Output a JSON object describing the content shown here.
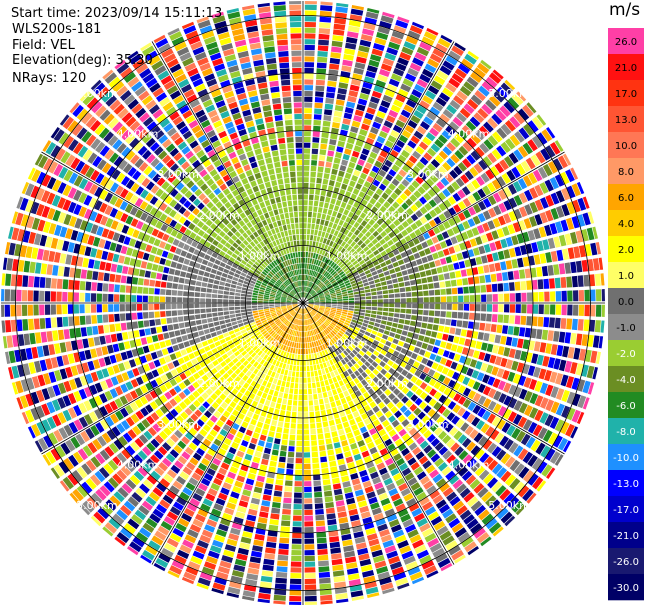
{
  "meta": {
    "start_time": "Start time: 2023/09/14 15:11:13",
    "instrument": "WLS200s-181",
    "field": "Field: VEL",
    "elevation": "Elevation(deg): 35.30",
    "nrays": "NRays: 120"
  },
  "chart_data": {
    "type": "heatmap",
    "projection": "polar-ppi",
    "field": "VEL",
    "unit": "m/s",
    "nrays": 120,
    "range_rings_km": [
      1.0,
      2.0,
      3.0,
      4.0,
      5.0
    ],
    "range_ring_labels": [
      "1.00km",
      "2.00km",
      "3.00km",
      "4.00km",
      "5.00km"
    ],
    "max_range_km": 5.3,
    "colorbar": {
      "labels": [
        "26.0",
        "21.0",
        "17.0",
        "13.0",
        "10.0",
        "8.0",
        "6.0",
        "4.0",
        "2.0",
        "1.0",
        "0.0",
        "-1.0",
        "-2.0",
        "-4.0",
        "-6.0",
        "-8.0",
        "-10.0",
        "-13.0",
        "-17.0",
        "-21.0",
        "-26.0",
        "-30.0"
      ],
      "colors": [
        "#ff3fa6",
        "#ff1111",
        "#ff3311",
        "#ff5533",
        "#ff7755",
        "#ff9966",
        "#ffa500",
        "#ffcc00",
        "#ffff00",
        "#ffff66",
        "#707070",
        "#8c8c8c",
        "#9acd32",
        "#6b8e23",
        "#228b22",
        "#20b2aa",
        "#1e90ff",
        "#0000ff",
        "#0000cd",
        "#00008b",
        "#191970",
        "#000066"
      ]
    },
    "regions": [
      {
        "description": "near field (<1 km) north half",
        "dominant_velocity": "-4.0 to -6.0"
      },
      {
        "description": "near field (<1 km) south half",
        "dominant_velocity": "4.0 to 6.0"
      },
      {
        "description": "1-2 km north sector",
        "dominant_velocity": "-2.0"
      },
      {
        "description": "1-2 km west/east flanks",
        "dominant_velocity": "0.0 to -1.0"
      },
      {
        "description": "1-2 km south sector",
        "dominant_velocity": "2.0 to 1.0"
      },
      {
        "description": "beyond ~3 km",
        "dominant_velocity": "noise (all values)"
      }
    ]
  }
}
